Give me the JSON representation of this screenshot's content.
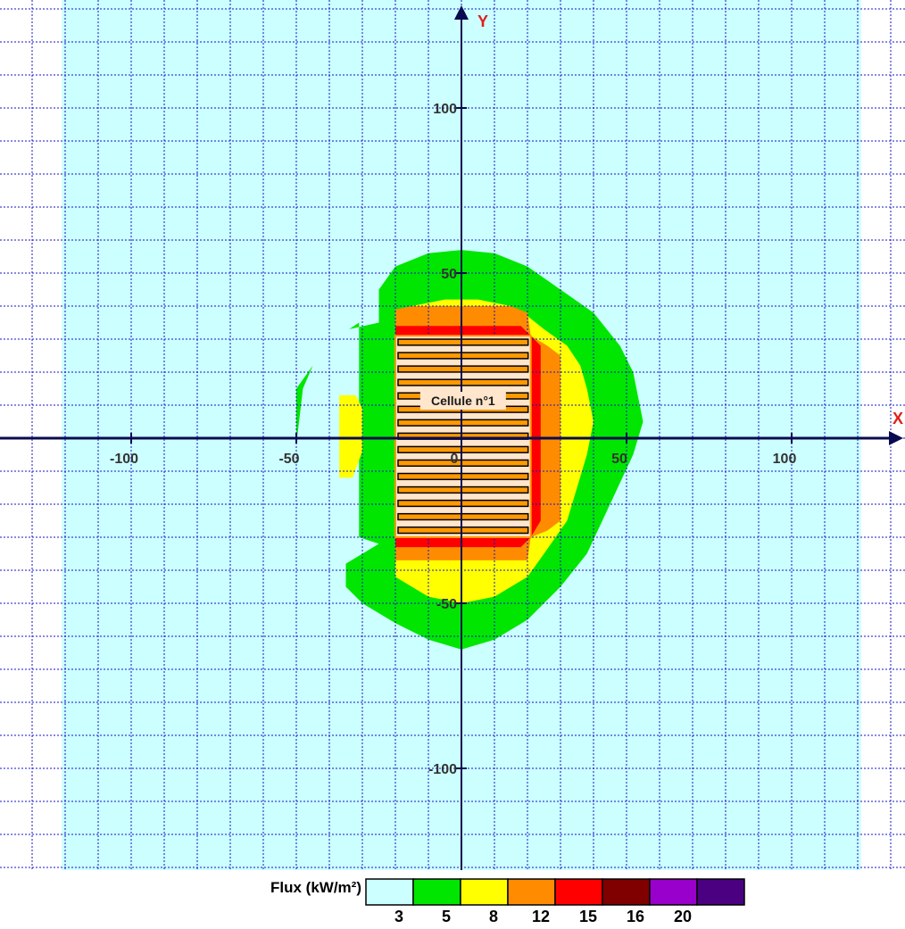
{
  "chart_data": {
    "type": "heatmap",
    "title": "",
    "xlabel": "X",
    "ylabel": "Y",
    "xlim": [
      -138,
      132
    ],
    "ylim": [
      -132,
      132
    ],
    "x_ticks": [
      -100,
      -50,
      0,
      50,
      100
    ],
    "y_ticks": [
      100,
      50,
      -50,
      -100
    ],
    "x_tick_labels": [
      "-100",
      "-50",
      "0",
      "50",
      "100"
    ],
    "y_tick_labels": [
      "100",
      "50",
      "-50",
      "-100"
    ],
    "grid": true,
    "grid_step": 10,
    "colored_area_x": [
      -121,
      121
    ],
    "building": {
      "label": "Cellule n°1",
      "x_range": [
        -20,
        21
      ],
      "y_range": [
        -30,
        31
      ],
      "stripes": 15
    },
    "zones": [
      {
        "threshold": 5,
        "color": "#00e600",
        "polygon": [
          [
            -50,
            -2
          ],
          [
            -50,
            15
          ],
          [
            -45,
            22
          ],
          [
            -40,
            27
          ],
          [
            -34,
            33
          ],
          [
            -31,
            35
          ],
          [
            -31,
            -30
          ],
          [
            -25,
            -32
          ],
          [
            -35,
            -38
          ],
          [
            -35,
            -45
          ],
          [
            -30,
            -50
          ],
          [
            -20,
            -56
          ],
          [
            -10,
            -61
          ],
          [
            0,
            -64
          ],
          [
            10,
            -61
          ],
          [
            20,
            -55
          ],
          [
            30,
            -45
          ],
          [
            38,
            -35
          ],
          [
            45,
            -20
          ],
          [
            52,
            -5
          ],
          [
            55,
            5
          ],
          [
            52,
            20
          ],
          [
            48,
            28
          ],
          [
            40,
            38
          ],
          [
            30,
            45
          ],
          [
            20,
            52
          ],
          [
            10,
            56
          ],
          [
            0,
            57
          ],
          [
            -10,
            56
          ],
          [
            -20,
            52
          ],
          [
            -25,
            45
          ],
          [
            -25,
            35
          ],
          [
            -34,
            33
          ],
          [
            -40,
            27
          ],
          [
            -45,
            22
          ],
          [
            -48,
            15
          ]
        ]
      },
      {
        "threshold": 8,
        "color": "#ffff00",
        "polygon": [
          [
            -20,
            30
          ],
          [
            -20,
            37
          ],
          [
            -15,
            40
          ],
          [
            -5,
            42
          ],
          [
            5,
            42
          ],
          [
            15,
            40
          ],
          [
            20,
            37
          ],
          [
            25,
            33
          ],
          [
            32,
            28
          ],
          [
            36,
            22
          ],
          [
            38,
            15
          ],
          [
            40,
            5
          ],
          [
            38,
            -5
          ],
          [
            35,
            -15
          ],
          [
            32,
            -25
          ],
          [
            25,
            -35
          ],
          [
            20,
            -42
          ],
          [
            10,
            -48
          ],
          [
            0,
            -50
          ],
          [
            -10,
            -48
          ],
          [
            -20,
            -42
          ],
          [
            -20,
            -30
          ]
        ]
      },
      {
        "threshold": 8,
        "color": "#ffff00",
        "polygon": [
          [
            -37,
            13
          ],
          [
            -32,
            13
          ],
          [
            -30,
            9
          ],
          [
            -30,
            -4
          ],
          [
            -33,
            -12
          ],
          [
            -37,
            -12
          ],
          [
            -37,
            -4
          ]
        ]
      },
      {
        "threshold": 12,
        "color": "#ff8c00",
        "polygon": [
          [
            -20,
            31
          ],
          [
            -20,
            39
          ],
          [
            -15,
            40
          ],
          [
            15,
            40
          ],
          [
            20,
            38
          ],
          [
            21,
            31
          ],
          [
            26,
            28
          ],
          [
            30,
            25
          ],
          [
            30,
            -25
          ],
          [
            26,
            -28
          ],
          [
            21,
            -30
          ],
          [
            20,
            -37
          ],
          [
            -20,
            -37
          ],
          [
            -20,
            -30
          ]
        ]
      },
      {
        "threshold": 15,
        "color": "#ff0000",
        "polygon": [
          [
            -20,
            31
          ],
          [
            -20,
            34
          ],
          [
            18,
            34
          ],
          [
            21,
            31
          ],
          [
            24,
            28
          ],
          [
            24,
            -25
          ],
          [
            21,
            -30
          ],
          [
            18,
            -33
          ],
          [
            -20,
            -33
          ],
          [
            -20,
            -30
          ]
        ]
      }
    ],
    "legend": {
      "title": "Flux (kW/m²)",
      "colors": [
        "#ccffff",
        "#00e600",
        "#ffff00",
        "#ff8c00",
        "#ff0000",
        "#800000",
        "#9900cc",
        "#4b0082"
      ],
      "thresholds": [
        "3",
        "5",
        "8",
        "12",
        "15",
        "16",
        "20"
      ]
    },
    "colors": {
      "background": "#ccffff",
      "grid": "#1414c8",
      "axis": "#0a0a50",
      "building_fill": "#ffe6cc",
      "building_stripe": "#ff9900"
    }
  }
}
